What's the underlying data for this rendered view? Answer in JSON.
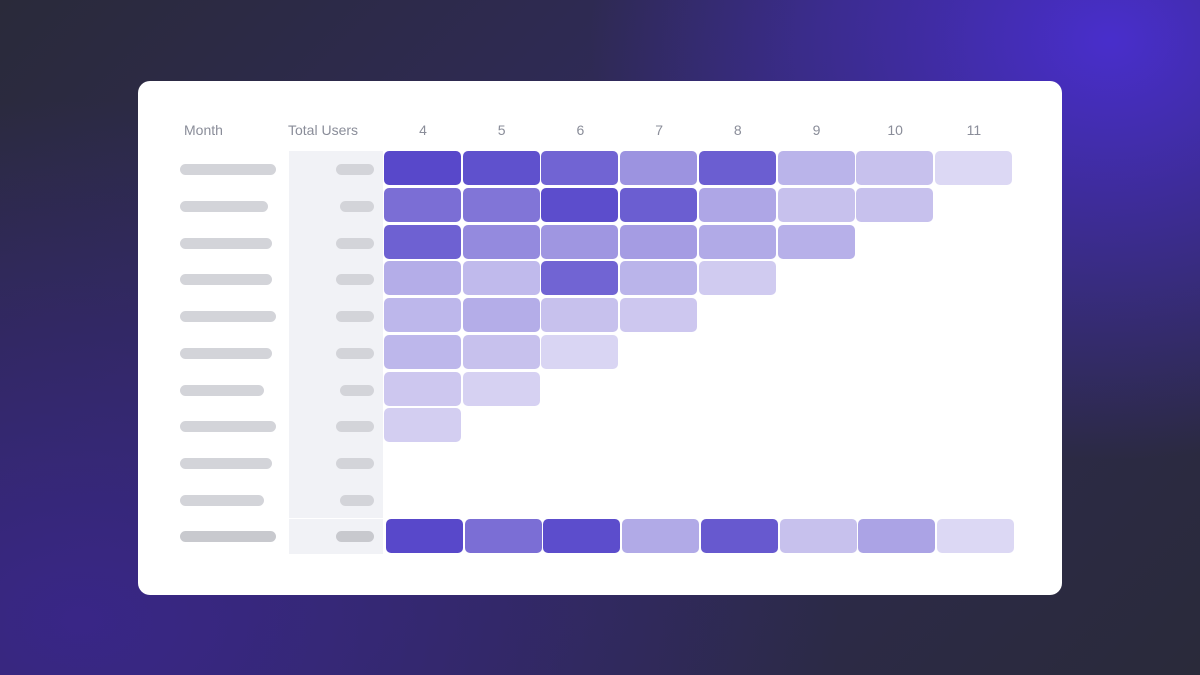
{
  "header": {
    "month_label": "Month",
    "users_label": "Total Users"
  },
  "chart_data": {
    "type": "heatmap",
    "columns": [
      "4",
      "5",
      "6",
      "7",
      "8",
      "9",
      "10",
      "11"
    ],
    "row_labels_visible": false,
    "color_scale": [
      "#e8e5f8",
      "#5040c8"
    ],
    "rows": [
      [
        0.95,
        0.9,
        0.78,
        0.5,
        0.82,
        0.3,
        0.22,
        0.08
      ],
      [
        0.72,
        0.68,
        0.92,
        0.82,
        0.38,
        0.22,
        0.22
      ],
      [
        0.8,
        0.55,
        0.48,
        0.44,
        0.36,
        0.32
      ],
      [
        0.34,
        0.26,
        0.78,
        0.3,
        0.16
      ],
      [
        0.28,
        0.34,
        0.22,
        0.18
      ],
      [
        0.28,
        0.22,
        0.1
      ],
      [
        0.18,
        0.12
      ],
      [
        0.14
      ],
      [],
      []
    ],
    "average_row": [
      0.95,
      0.72,
      0.92,
      0.36,
      0.85,
      0.22,
      0.4,
      0.08
    ]
  }
}
